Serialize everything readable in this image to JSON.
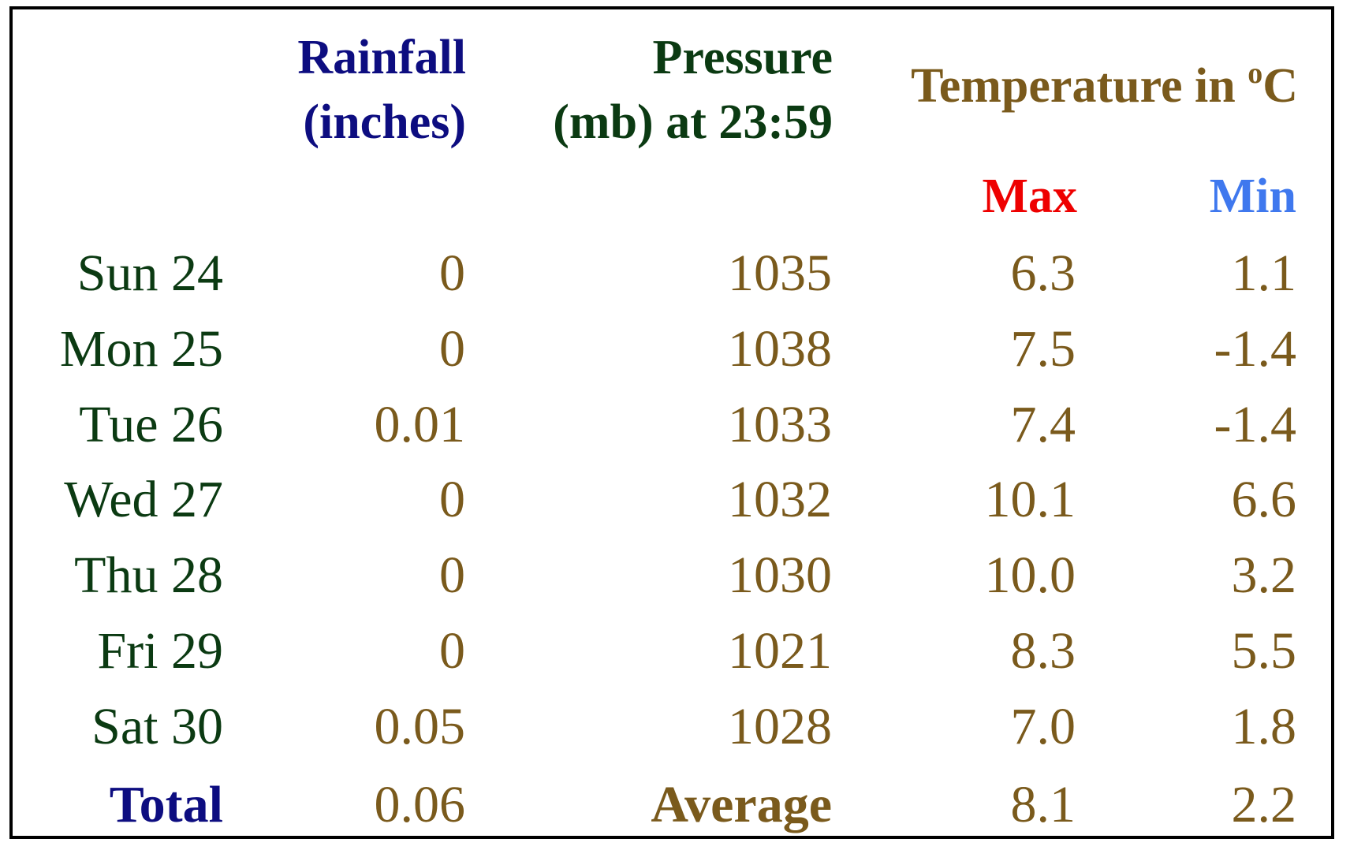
{
  "chart_data": {
    "type": "table",
    "colors": {
      "rainfall_header": "#0d0d80",
      "pressure_header": "#0b3a12",
      "temperature_header": "#7a5a1c",
      "max_header": "#ee0000",
      "min_header": "#3f78ee",
      "day_labels": "#0b3a12",
      "values": "#7a5a1c",
      "total_label": "#0d0d80"
    },
    "headers": {
      "rainfall": [
        "Rainfall",
        "(inches)"
      ],
      "pressure": [
        "Pressure",
        "(mb) at 23:59"
      ],
      "temperature": "Temperature in ",
      "temperature_unit_sup": "o",
      "temperature_unit": "C",
      "max": "Max",
      "min": "Min"
    },
    "rows": [
      {
        "day": "Sun 24",
        "rainfall": "0",
        "pressure": "1035",
        "max": "6.3",
        "min": "1.1"
      },
      {
        "day": "Mon 25",
        "rainfall": "0",
        "pressure": "1038",
        "max": "7.5",
        "min": "-1.4"
      },
      {
        "day": "Tue 26",
        "rainfall": "0.01",
        "pressure": "1033",
        "max": "7.4",
        "min": "-1.4"
      },
      {
        "day": "Wed 27",
        "rainfall": "0",
        "pressure": "1032",
        "max": "10.1",
        "min": "6.6"
      },
      {
        "day": "Thu 28",
        "rainfall": "0",
        "pressure": "1030",
        "max": "10.0",
        "min": "3.2"
      },
      {
        "day": "Fri 29",
        "rainfall": "0",
        "pressure": "1021",
        "max": "8.3",
        "min": "5.5"
      },
      {
        "day": "Sat 30",
        "rainfall": "0.05",
        "pressure": "1028",
        "max": "7.0",
        "min": "1.8"
      }
    ],
    "summary": {
      "total_label": "Total",
      "total_rainfall": "0.06",
      "average_label": "Average",
      "average_max": "8.1",
      "average_min": "2.2"
    }
  }
}
